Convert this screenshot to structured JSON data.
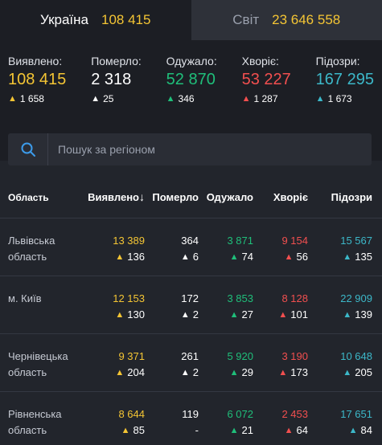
{
  "tabs": [
    {
      "label": "Україна",
      "value": "108 415"
    },
    {
      "label": "Світ",
      "value": "23 646 558"
    }
  ],
  "summary": [
    {
      "label": "Виявлено:",
      "value": "108 415",
      "delta": "1 658",
      "color": "#f4c534"
    },
    {
      "label": "Померло:",
      "value": "2 318",
      "delta": "25",
      "color": "#ffffff"
    },
    {
      "label": "Одужало:",
      "value": "52 870",
      "delta": "346",
      "color": "#1fbf7a"
    },
    {
      "label": "Хворіє:",
      "value": "53 227",
      "delta": "1 287",
      "color": "#f24f4f"
    },
    {
      "label": "Підозри:",
      "value": "167 295",
      "delta": "1 673",
      "color": "#3cb8c9"
    }
  ],
  "search": {
    "placeholder": "Пошук за регіоном"
  },
  "table": {
    "headers": {
      "region": "Область",
      "confirmed": "Виявлено",
      "deaths": "Померло",
      "recovered": "Одужало",
      "sick": "Хворіє",
      "suspected": "Підозри"
    },
    "sort_arrow": "↓",
    "rows": [
      {
        "region": "Львівська область",
        "confirmed": "13 389",
        "confirmed_d": "136",
        "deaths": "364",
        "deaths_d": "6",
        "recovered": "3 871",
        "recovered_d": "74",
        "sick": "9 154",
        "sick_d": "56",
        "suspected": "15 567",
        "suspected_d": "135"
      },
      {
        "region": "м. Київ",
        "confirmed": "12 153",
        "confirmed_d": "130",
        "deaths": "172",
        "deaths_d": "2",
        "recovered": "3 853",
        "recovered_d": "27",
        "sick": "8 128",
        "sick_d": "101",
        "suspected": "22 909",
        "suspected_d": "139"
      },
      {
        "region": "Чернівецька область",
        "confirmed": "9 371",
        "confirmed_d": "204",
        "deaths": "261",
        "deaths_d": "2",
        "recovered": "5 920",
        "recovered_d": "29",
        "sick": "3 190",
        "sick_d": "173",
        "suspected": "10 648",
        "suspected_d": "205"
      },
      {
        "region": "Рівненська область",
        "confirmed": "8 644",
        "confirmed_d": "85",
        "deaths": "119",
        "deaths_d": "-",
        "recovered": "6 072",
        "recovered_d": "21",
        "sick": "2 453",
        "sick_d": "64",
        "suspected": "17 651",
        "suspected_d": "84"
      }
    ]
  },
  "arrow_glyph": "🠕"
}
